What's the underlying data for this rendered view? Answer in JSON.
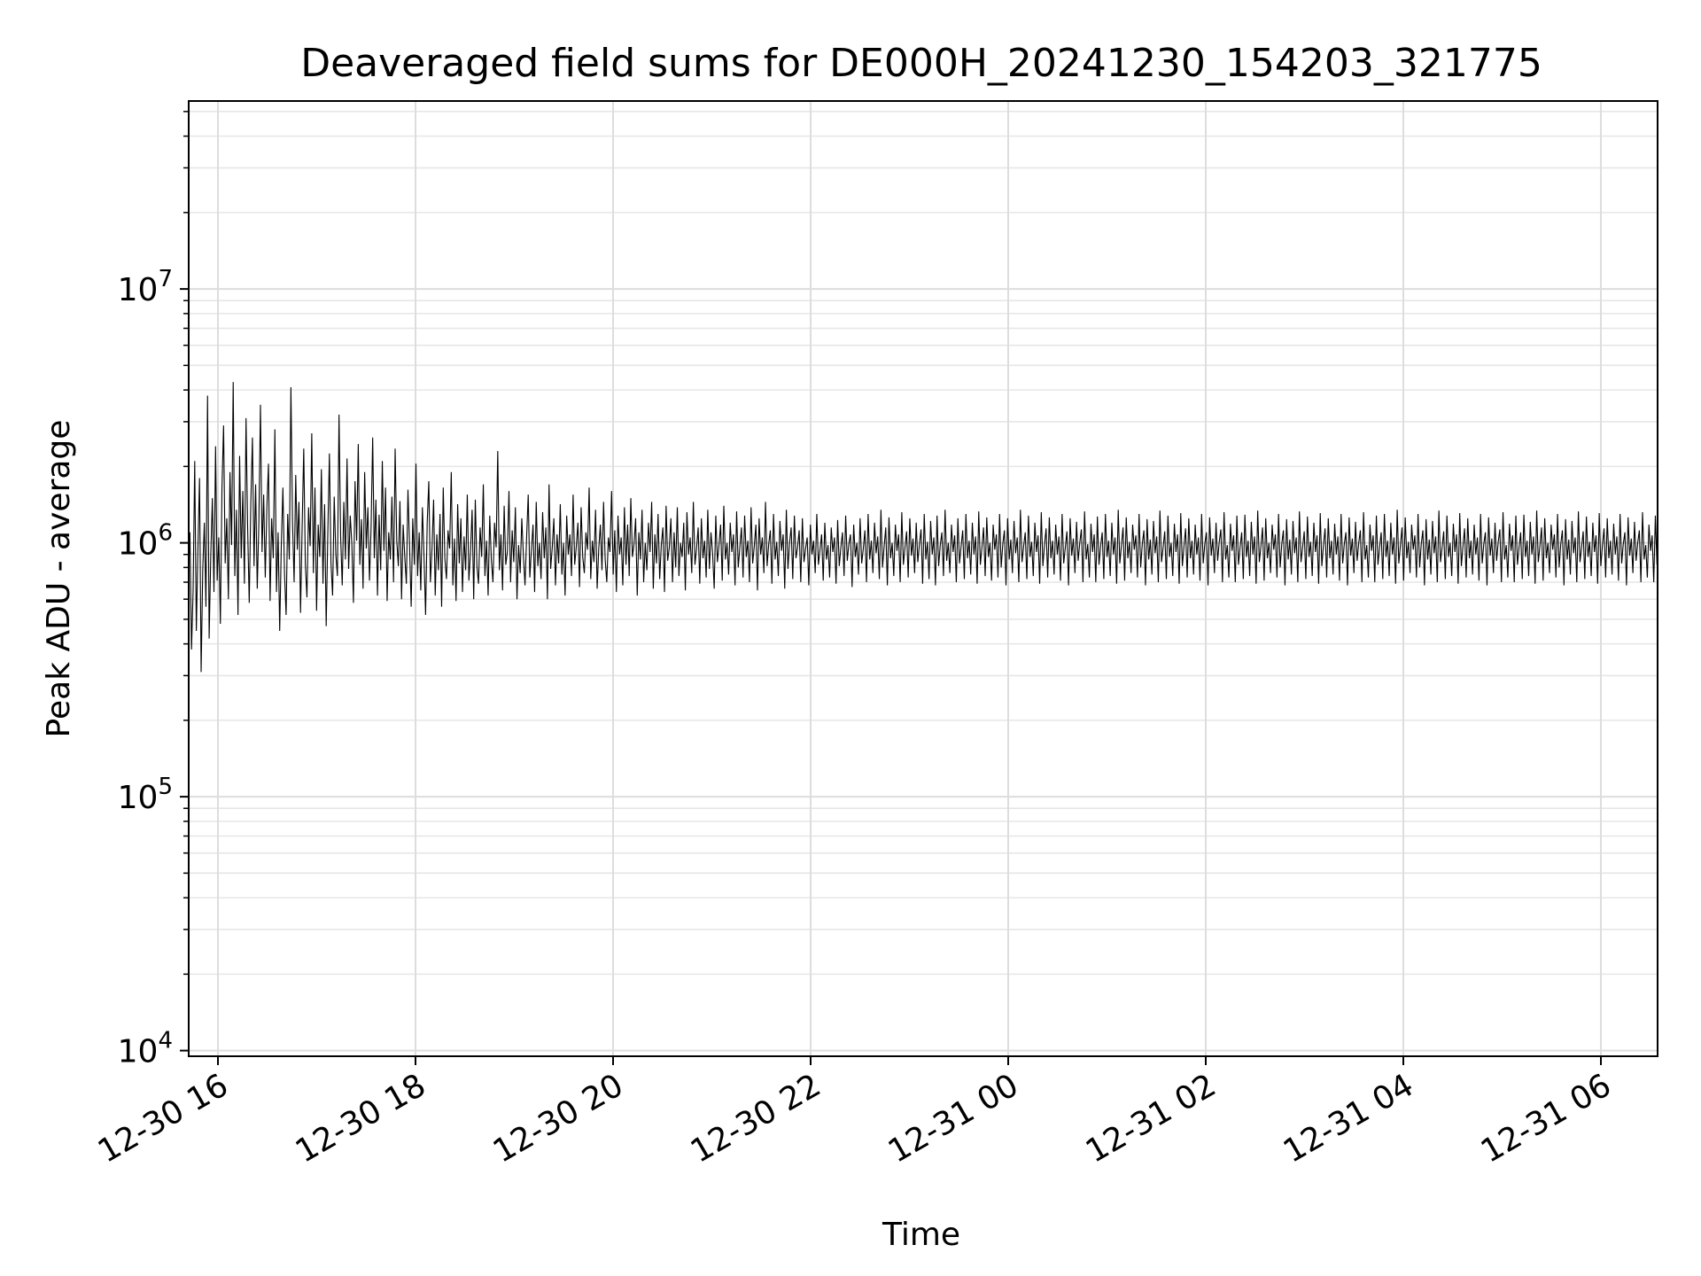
{
  "chart_data": {
    "type": "line",
    "title": "Deaveraged field sums for DE000H_20241230_154203_321775",
    "xlabel": "Time",
    "ylabel": "Peak ADU - average",
    "yscale": "log",
    "ylim": [
      9500,
      55000000
    ],
    "xlim": [
      "12-30 15:42",
      "12-31 06:36"
    ],
    "grid": "on",
    "line_color": "#000000",
    "x_ticks": [
      {
        "hour": 0,
        "label": "12-30 16"
      },
      {
        "hour": 2,
        "label": "12-30 18"
      },
      {
        "hour": 4,
        "label": "12-30 20"
      },
      {
        "hour": 6,
        "label": "12-30 22"
      },
      {
        "hour": 8,
        "label": "12-31 00"
      },
      {
        "hour": 10,
        "label": "12-31 02"
      },
      {
        "hour": 12,
        "label": "12-31 04"
      },
      {
        "hour": 14,
        "label": "12-31 06"
      }
    ],
    "y_ticks": [
      {
        "value": 10000,
        "base": "10",
        "exp": "4"
      },
      {
        "value": 100000,
        "base": "10",
        "exp": "5"
      },
      {
        "value": 1000000,
        "base": "10",
        "exp": "6"
      },
      {
        "value": 10000000,
        "base": "10",
        "exp": "7"
      }
    ],
    "series": [
      {
        "x_start": "12-30 15:42",
        "x_end": "12-31 06:36",
        "y": [
          720000,
          1100000,
          380000,
          650000,
          2100000,
          450000,
          950000,
          1800000,
          310000,
          780000,
          1200000,
          560000,
          3800000,
          420000,
          890000,
          1500000,
          640000,
          2400000,
          710000,
          1050000,
          480000,
          1650000,
          2900000,
          830000,
          1250000,
          600000,
          1900000,
          980000,
          4300000,
          740000,
          1350000,
          520000,
          2200000,
          870000,
          1600000,
          690000,
          3100000,
          1150000,
          580000,
          1450000,
          2600000,
          810000,
          1700000,
          660000,
          1200000,
          3500000,
          920000,
          1550000,
          730000,
          1380000,
          2050000,
          590000,
          1250000,
          870000,
          2800000,
          640000,
          1100000,
          450000,
          980000,
          1650000,
          760000,
          520000,
          1300000,
          860000,
          4100000,
          1200000,
          700000,
          1850000,
          940000,
          1450000,
          530000,
          1150000,
          2350000,
          820000,
          610000,
          1380000,
          970000,
          2700000,
          760000,
          1650000,
          540000,
          1180000,
          880000,
          1950000,
          690000,
          1420000,
          470000,
          1080000,
          2250000,
          830000,
          620000,
          1520000,
          900000,
          740000,
          3200000,
          1060000,
          680000,
          1450000,
          860000,
          2150000,
          790000,
          1280000,
          990000,
          580000,
          1750000,
          1020000,
          2450000,
          820000,
          1240000,
          660000,
          1900000,
          950000,
          1380000,
          710000,
          1150000,
          2600000,
          870000,
          1480000,
          620000,
          1290000,
          780000,
          2100000,
          930000,
          1650000,
          590000,
          1100000,
          860000,
          1520000,
          700000,
          2350000,
          1020000,
          810000,
          1460000,
          600000,
          1180000,
          880000,
          690000,
          1620000,
          970000,
          560000,
          1250000,
          820000,
          2050000,
          740000,
          1100000,
          650000,
          1380000,
          890000,
          520000,
          1200000,
          1750000,
          700000,
          950000,
          1480000,
          620000,
          1080000,
          780000,
          1300000,
          560000,
          1650000,
          870000,
          720000,
          1120000,
          950000,
          1900000,
          680000,
          1040000,
          590000,
          1420000,
          830000,
          1250000,
          640000,
          1060000,
          780000,
          1550000,
          710000,
          920000,
          1350000,
          600000,
          1480000,
          810000,
          690000,
          1150000,
          880000,
          1700000,
          740000,
          1020000,
          620000,
          1280000,
          860000,
          700000,
          1200000,
          960000,
          2300000,
          780000,
          1080000,
          650000,
          1400000,
          820000,
          920000,
          1600000,
          700000,
          1120000,
          840000,
          1380000,
          600000,
          980000,
          760000,
          1250000,
          890000,
          680000,
          1050000,
          1550000,
          730000,
          940000,
          1180000,
          640000,
          1450000,
          810000,
          1000000,
          720000,
          1320000,
          870000,
          1150000,
          600000,
          1700000,
          790000,
          960000,
          1250000,
          680000,
          1080000,
          830000,
          1420000,
          750000,
          1000000,
          620000,
          1280000,
          900000,
          1080000,
          740000,
          1550000,
          820000,
          970000,
          1200000,
          670000,
          1380000,
          880000,
          760000,
          1100000,
          940000,
          1650000,
          720000,
          1020000,
          840000,
          1350000,
          660000,
          950000,
          1180000,
          780000,
          1450000,
          860000,
          700000,
          1050000,
          920000,
          1600000,
          750000,
          1120000,
          640000,
          1280000,
          900000,
          1050000,
          680000,
          1380000,
          820000,
          1180000,
          740000,
          1500000,
          880000,
          990000,
          1250000,
          620000,
          1100000,
          860000,
          1350000,
          700000,
          1000000,
          780000,
          1200000,
          920000,
          1450000,
          660000,
          1080000,
          830000,
          1300000,
          720000,
          980000,
          1150000,
          640000,
          1400000,
          850000,
          960000,
          1250000,
          700000,
          1100000,
          800000,
          1380000,
          740000,
          1000000,
          880000,
          1200000,
          650000,
          1320000,
          900000,
          1050000,
          760000,
          1450000,
          820000,
          950000,
          1150000,
          690000,
          1250000,
          870000,
          1020000,
          730000,
          1350000,
          790000,
          1100000,
          910000,
          660000,
          1280000,
          840000,
          980000,
          1180000,
          710000,
          1400000,
          860000,
          1000000,
          750000,
          1200000,
          920000,
          1080000,
          680000,
          1330000,
          800000,
          960000,
          1150000,
          730000,
          1280000,
          880000,
          1020000,
          700000,
          1380000,
          830000,
          970000,
          1180000,
          650000,
          1250000,
          900000,
          1050000,
          760000,
          1450000,
          810000,
          990000,
          1120000,
          690000,
          1300000,
          860000,
          1010000,
          740000,
          1220000,
          930000,
          1080000,
          660000,
          1350000,
          790000,
          1000000,
          1150000,
          720000,
          1280000,
          870000,
          960000,
          1120000,
          700000,
          1250000,
          840000,
          950000,
          1050000,
          680000,
          1180000,
          900000,
          1020000,
          760000,
          1300000,
          820000,
          940000,
          1080000,
          710000,
          1200000,
          860000,
          980000,
          730000,
          1150000,
          920000,
          1050000,
          690000,
          1230000,
          810000,
          960000,
          1100000,
          740000,
          1280000,
          850000,
          990000,
          1080000,
          670000,
          1180000,
          880000,
          1000000,
          750000,
          1250000,
          830000,
          950000,
          1120000,
          700000,
          1300000,
          860000,
          1020000,
          760000,
          1200000,
          910000,
          1060000,
          720000,
          1350000,
          800000,
          970000,
          1150000,
          680000,
          1260000,
          870000,
          1000000,
          740000,
          1180000,
          930000,
          1080000,
          700000,
          1320000,
          820000,
          960000,
          1110000,
          730000,
          1250000,
          890000,
          1040000,
          760000,
          1200000,
          840000,
          990000,
          1130000,
          690000,
          1300000,
          860000,
          1010000,
          720000,
          1220000,
          900000,
          1050000,
          680000,
          1280000,
          810000,
          980000,
          1100000,
          740000,
          1350000,
          850000,
          1000000,
          760000,
          1180000,
          920000,
          1070000,
          700000,
          1250000,
          830000,
          970000,
          1120000,
          720000,
          1300000,
          870000,
          1020000,
          750000,
          1200000,
          900000,
          1060000,
          690000,
          1330000,
          820000,
          960000,
          1150000,
          740000,
          1260000,
          880000,
          1000000,
          710000,
          1180000,
          940000,
          1080000,
          730000,
          1300000,
          800000,
          990000,
          1120000,
          680000,
          1250000,
          860000,
          1030000,
          760000,
          1220000,
          910000,
          1050000,
          700000,
          1350000,
          840000,
          970000,
          1100000,
          720000,
          1280000,
          880000,
          1010000,
          740000,
          1200000,
          920000,
          1070000,
          690000,
          1320000,
          810000,
          980000,
          1140000,
          730000,
          1260000,
          870000,
          1020000,
          750000,
          1180000,
          900000,
          1060000,
          710000,
          1300000,
          830000,
          960000,
          1110000,
          680000,
          1250000,
          890000,
          1040000,
          760000,
          1210000,
          850000,
          1000000,
          1130000,
          700000,
          1330000,
          860000,
          990000,
          730000,
          1190000,
          920000,
          1080000,
          700000,
          1270000,
          820000,
          970000,
          1100000,
          720000,
          1300000,
          880000,
          1020000,
          740000,
          1200000,
          900000,
          1050000,
          690000,
          1350000,
          830000,
          980000,
          1150000,
          710000,
          1260000,
          870000,
          1010000,
          760000,
          1180000,
          940000,
          1070000,
          730000,
          1300000,
          800000,
          990000,
          1120000,
          680000,
          1240000,
          860000,
          1030000,
          750000,
          1220000,
          910000,
          1060000,
          700000,
          1340000,
          840000,
          960000,
          1110000,
          720000,
          1280000,
          880000,
          1000000,
          740000,
          1190000,
          920000,
          1080000,
          690000,
          1310000,
          810000,
          970000,
          1140000,
          730000,
          1250000,
          870000,
          1020000,
          750000,
          1180000,
          900000,
          1050000,
          710000,
          1300000,
          830000,
          990000,
          1100000,
          680000,
          1260000,
          890000,
          1040000,
          760000,
          1200000,
          850000,
          1010000,
          1130000,
          700000,
          1320000,
          860000,
          980000,
          730000,
          1190000,
          930000,
          1070000,
          700000,
          1280000,
          820000,
          960000,
          1100000,
          720000,
          1290000,
          880000,
          1020000,
          740000,
          1210000,
          900000,
          1060000,
          690000,
          1340000,
          840000,
          970000,
          1150000,
          710000,
          1250000,
          870000,
          1000000,
          760000,
          1180000,
          940000,
          1080000,
          730000,
          1300000,
          800000,
          990000,
          1120000,
          680000,
          1240000,
          860000,
          1030000,
          750000,
          1220000,
          910000,
          1050000,
          700000,
          1330000,
          840000,
          960000,
          1110000,
          720000,
          1270000,
          880000,
          1010000,
          740000,
          1200000,
          920000,
          1070000,
          690000,
          1310000,
          810000,
          980000,
          1140000,
          730000,
          1250000,
          870000,
          1020000,
          750000,
          1190000,
          900000,
          1060000,
          710000,
          1300000,
          830000,
          990000,
          1100000,
          680000,
          1260000,
          890000,
          1040000,
          760000,
          1210000,
          850000,
          1000000,
          1120000,
          700000,
          1320000,
          860000,
          980000,
          730000,
          1180000,
          930000,
          1070000,
          700000,
          1280000,
          820000,
          960000,
          1100000,
          720000,
          1300000,
          880000,
          1020000,
          740000,
          1200000,
          900000,
          1050000,
          690000,
          1350000,
          830000,
          980000,
          1150000,
          710000,
          1260000,
          870000,
          1010000,
          760000,
          1180000,
          940000,
          1070000,
          730000,
          1300000,
          800000,
          990000,
          1120000,
          680000,
          1240000,
          860000,
          1030000,
          750000,
          1220000,
          910000,
          1060000,
          700000,
          1340000,
          840000,
          960000,
          1110000,
          720000,
          1280000,
          880000,
          1000000,
          740000,
          1190000,
          920000,
          1080000,
          690000,
          1310000,
          810000,
          970000,
          1140000,
          730000,
          1250000,
          870000,
          1020000,
          750000,
          1180000,
          900000,
          1050000,
          710000,
          1300000,
          830000,
          990000,
          1100000,
          680000,
          1260000,
          890000,
          1040000,
          760000,
          1200000,
          850000,
          1010000,
          1130000,
          700000,
          1320000,
          860000,
          980000,
          730000,
          1190000,
          930000,
          1070000,
          700000,
          1280000,
          820000,
          960000,
          1100000,
          720000,
          1290000,
          880000,
          1020000,
          740000,
          1210000,
          900000,
          1060000,
          690000,
          1340000,
          840000,
          970000,
          1150000,
          710000,
          1250000,
          870000,
          1000000,
          760000,
          1180000,
          940000,
          1080000,
          730000,
          1300000,
          800000,
          990000,
          1120000,
          680000,
          1240000,
          860000,
          1030000,
          750000,
          1220000,
          910000,
          1050000,
          700000,
          1330000,
          840000,
          960000,
          1110000,
          720000,
          1270000,
          880000,
          1010000,
          740000,
          1200000,
          920000,
          1070000,
          690000,
          1310000,
          810000,
          980000,
          1140000,
          730000,
          1250000,
          870000,
          1020000,
          750000,
          1190000,
          900000,
          1060000,
          710000,
          1300000,
          830000,
          990000,
          1100000,
          680000,
          1260000,
          890000,
          1040000,
          760000,
          1210000,
          850000,
          1000000,
          1120000,
          700000,
          1320000,
          860000,
          980000,
          730000,
          1180000,
          930000,
          1070000,
          700000,
          1280000,
          820000,
          960000,
          1100000
        ]
      }
    ]
  }
}
